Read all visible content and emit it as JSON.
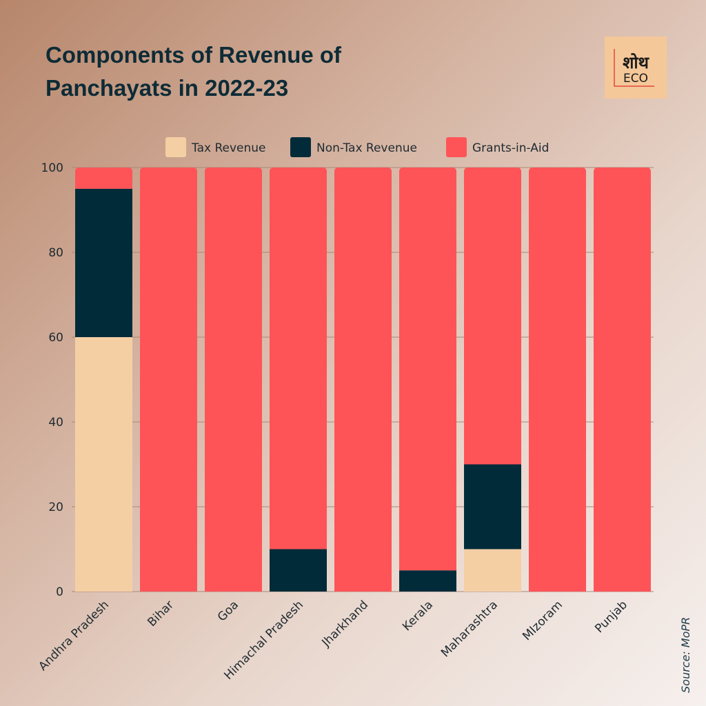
{
  "title": [
    "Components of Revenue of",
    "Panchayats in 2022-23"
  ],
  "logo": {
    "text": "शोध ECO"
  },
  "source": "Source: MoPR",
  "colors": {
    "tax": "#f5cfa4",
    "nontax": "#022b3a",
    "grants": "#fe5458"
  },
  "chart_data": {
    "type": "bar",
    "stacked": true,
    "title": "Components of Revenue of Panchayats in 2022-23",
    "categories": [
      "Andhra Pradesh",
      "Bihar",
      "Goa",
      "Himachal Pradesh",
      "Jharkhand",
      "Kerala",
      "Maharashtra",
      "MIzoram",
      "Punjab"
    ],
    "series": [
      {
        "name": "Tax Revenue",
        "values": [
          60,
          0,
          0,
          0,
          0,
          0,
          10,
          0,
          0
        ]
      },
      {
        "name": "Non-Tax Revenue",
        "values": [
          35,
          0,
          0,
          10,
          0,
          5,
          20,
          0,
          0
        ]
      },
      {
        "name": "Grants-in-Aid",
        "values": [
          5,
          100,
          100,
          90,
          100,
          95,
          70,
          100,
          100
        ]
      }
    ],
    "ylim": [
      0,
      100
    ],
    "yticks": [
      0,
      20,
      40,
      60,
      80,
      100
    ],
    "legend": "top-center",
    "grid": true,
    "xlabel": "",
    "ylabel": ""
  }
}
